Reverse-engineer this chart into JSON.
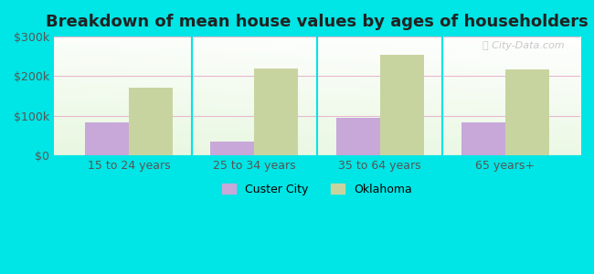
{
  "title": "Breakdown of mean house values by ages of householders",
  "categories": [
    "15 to 24 years",
    "25 to 34 years",
    "35 to 64 years",
    "65 years+"
  ],
  "custer_city": [
    83000,
    35000,
    95000,
    83000
  ],
  "oklahoma": [
    170000,
    220000,
    255000,
    218000
  ],
  "custer_city_color": "#c8a8d8",
  "oklahoma_color": "#c8d4a0",
  "background_color": "#00e5e5",
  "ylim": [
    0,
    300000
  ],
  "yticks": [
    0,
    100000,
    200000,
    300000
  ],
  "ytick_labels": [
    "$0",
    "$100k",
    "$200k",
    "$300k"
  ],
  "legend_labels": [
    "Custer City",
    "Oklahoma"
  ],
  "bar_width": 0.35,
  "title_fontsize": 13,
  "watermark": "City-Data.com",
  "grid_color": "#e8b8d0",
  "separator_color": "#00e5e5"
}
